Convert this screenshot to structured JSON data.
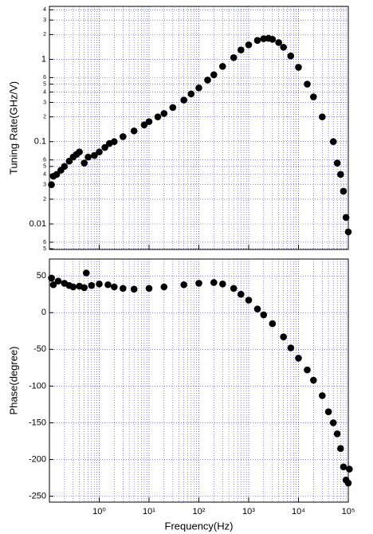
{
  "chart_data": [
    {
      "type": "scatter",
      "ylabel": "Tuning Rate(GHz/V)",
      "xscale": "log",
      "yscale": "log",
      "grid": true,
      "color": "#000000",
      "grid_color": "#3a3ad0",
      "xlim": [
        0.1,
        100000
      ],
      "ylim": [
        0.0049,
        4.4
      ],
      "xticks": [
        1,
        10,
        100,
        1000,
        10000,
        100000
      ],
      "xminor": [
        0.2,
        0.3,
        0.4,
        0.5,
        0.6,
        0.7,
        0.8,
        0.9,
        2,
        3,
        4,
        5,
        6,
        7,
        8,
        9,
        20,
        30,
        40,
        50,
        60,
        70,
        80,
        90,
        200,
        300,
        400,
        500,
        600,
        700,
        800,
        900,
        2000,
        3000,
        4000,
        5000,
        6000,
        7000,
        8000,
        9000,
        20000,
        30000,
        40000,
        50000,
        60000,
        70000,
        80000,
        90000
      ],
      "yticks": [
        4,
        3,
        2,
        1,
        {
          "value": 0.6,
          "label": "6"
        },
        {
          "value": 0.5,
          "label": "5"
        },
        {
          "value": 0.4,
          "label": "4"
        },
        {
          "value": 0.3,
          "label": "3"
        },
        {
          "value": 0.2,
          "label": "2"
        },
        0.1,
        {
          "value": 0.06,
          "label": "6"
        },
        {
          "value": 0.05,
          "label": "5"
        },
        {
          "value": 0.04,
          "label": "4"
        },
        {
          "value": 0.03,
          "label": "3"
        },
        {
          "value": 0.02,
          "label": "2"
        },
        0.01,
        {
          "value": 0.006,
          "label": "6"
        },
        {
          "value": 0.005,
          "label": "5"
        }
      ],
      "x": [
        0.11,
        0.12,
        0.14,
        0.17,
        0.2,
        0.25,
        0.3,
        0.35,
        0.4,
        0.5,
        0.6,
        0.8,
        1,
        1.3,
        1.6,
        2,
        3,
        5,
        8,
        10,
        15,
        20,
        30,
        50,
        70,
        100,
        150,
        200,
        300,
        500,
        700,
        1000,
        1500,
        2000,
        2500,
        3000,
        4000,
        5000,
        7000,
        10000,
        15000,
        20000,
        30000,
        50000,
        60000,
        70000,
        80000,
        90000,
        100000
      ],
      "values": [
        0.03,
        0.038,
        0.04,
        0.045,
        0.05,
        0.058,
        0.065,
        0.07,
        0.075,
        0.055,
        0.065,
        0.068,
        0.075,
        0.085,
        0.095,
        0.1,
        0.115,
        0.135,
        0.16,
        0.175,
        0.2,
        0.22,
        0.26,
        0.32,
        0.38,
        0.45,
        0.56,
        0.65,
        0.82,
        1.05,
        1.3,
        1.5,
        1.7,
        1.78,
        1.8,
        1.75,
        1.6,
        1.4,
        1.1,
        0.8,
        0.5,
        0.35,
        0.2,
        0.1,
        0.055,
        0.04,
        0.025,
        0.012,
        0.008
      ]
    },
    {
      "type": "scatter",
      "ylabel": "Phase(degree)",
      "xlabel": "Frequency(Hz)",
      "xscale": "log",
      "grid": true,
      "color": "#000000",
      "grid_color": "#3a3ad0",
      "xlim": [
        0.1,
        100000
      ],
      "ylim": [
        -258,
        73
      ],
      "xticks": [
        {
          "value": 1,
          "label": "10⁰"
        },
        {
          "value": 10,
          "label": "10¹"
        },
        {
          "value": 100,
          "label": "10²"
        },
        {
          "value": 1000,
          "label": "10³"
        },
        {
          "value": 10000,
          "label": "10⁴"
        },
        {
          "value": 100000,
          "label": "10⁵"
        }
      ],
      "xminor": [
        0.2,
        0.3,
        0.4,
        0.5,
        0.6,
        0.7,
        0.8,
        0.9,
        2,
        3,
        4,
        5,
        6,
        7,
        8,
        9,
        20,
        30,
        40,
        50,
        60,
        70,
        80,
        90,
        200,
        300,
        400,
        500,
        600,
        700,
        800,
        900,
        2000,
        3000,
        4000,
        5000,
        6000,
        7000,
        8000,
        9000,
        20000,
        30000,
        40000,
        50000,
        60000,
        70000,
        80000,
        90000
      ],
      "yticks": [
        50,
        0,
        -50,
        -100,
        -150,
        -200,
        -250
      ],
      "x": [
        0.11,
        0.12,
        0.15,
        0.2,
        0.25,
        0.3,
        0.4,
        0.5,
        0.55,
        0.7,
        1,
        1.5,
        2,
        3,
        5,
        10,
        20,
        50,
        100,
        200,
        300,
        500,
        700,
        1000,
        1500,
        2000,
        3000,
        5000,
        7000,
        10000,
        15000,
        20000,
        30000,
        40000,
        50000,
        60000,
        70000,
        80000,
        90000,
        100000,
        105000
      ],
      "values": [
        47,
        38,
        43,
        40,
        37,
        35,
        36,
        34,
        54,
        37,
        39,
        38,
        35,
        33,
        32,
        33,
        35,
        38,
        40,
        41,
        39,
        33,
        25,
        17,
        5,
        -3,
        -15,
        -33,
        -48,
        -62,
        -78,
        -92,
        -113,
        -135,
        -150,
        -165,
        -185,
        -210,
        -228,
        -232,
        -213
      ]
    }
  ]
}
